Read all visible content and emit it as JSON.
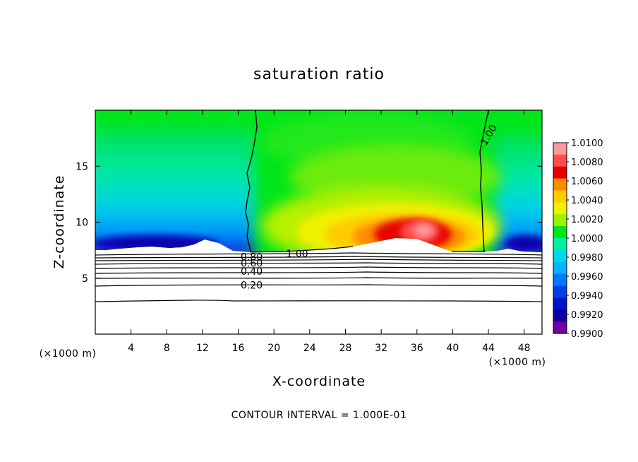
{
  "chart_data": {
    "type": "heatmap",
    "title": "saturation ratio",
    "xlabel": "X-coordinate",
    "ylabel": "Z-coordinate",
    "x_unit": "(×1000 m)",
    "y_unit": "(×1000 m)",
    "xlim": [
      0,
      50
    ],
    "ylim": [
      0,
      20
    ],
    "x_ticks": [
      4,
      8,
      12,
      16,
      20,
      24,
      28,
      32,
      36,
      40,
      44,
      48
    ],
    "y_ticks": [
      5,
      10,
      15
    ],
    "colorbar": {
      "levels": [
        "1.0100",
        "1.0080",
        "1.0060",
        "1.0040",
        "1.0020",
        "1.0000",
        "0.9980",
        "0.9960",
        "0.9940",
        "0.9920",
        "0.9900"
      ],
      "colors": [
        "#ff9999",
        "#ff4d4d",
        "#e60000",
        "#ff8c00",
        "#ffcc00",
        "#f0f000",
        "#9cf000",
        "#00e61a",
        "#00f0a0",
        "#00d8e6",
        "#00b4ff",
        "#0078ff",
        "#0040e6",
        "#0010d0",
        "#1000a0",
        "#7000a0"
      ]
    },
    "contour_labels": [
      {
        "text": "1.00",
        "x": 44.0,
        "z": 17.8
      },
      {
        "text": "1.00",
        "x": 22.6,
        "z": 7.2
      },
      {
        "text": "0.80",
        "x": 17.5,
        "z": 6.9
      },
      {
        "text": "0.60",
        "x": 17.5,
        "z": 6.35
      },
      {
        "text": "0.40",
        "x": 17.5,
        "z": 5.6
      },
      {
        "text": "0.20",
        "x": 17.5,
        "z": 4.4
      }
    ],
    "contour_interval": "CONTOUR INTERVAL = 1.000E-01"
  }
}
